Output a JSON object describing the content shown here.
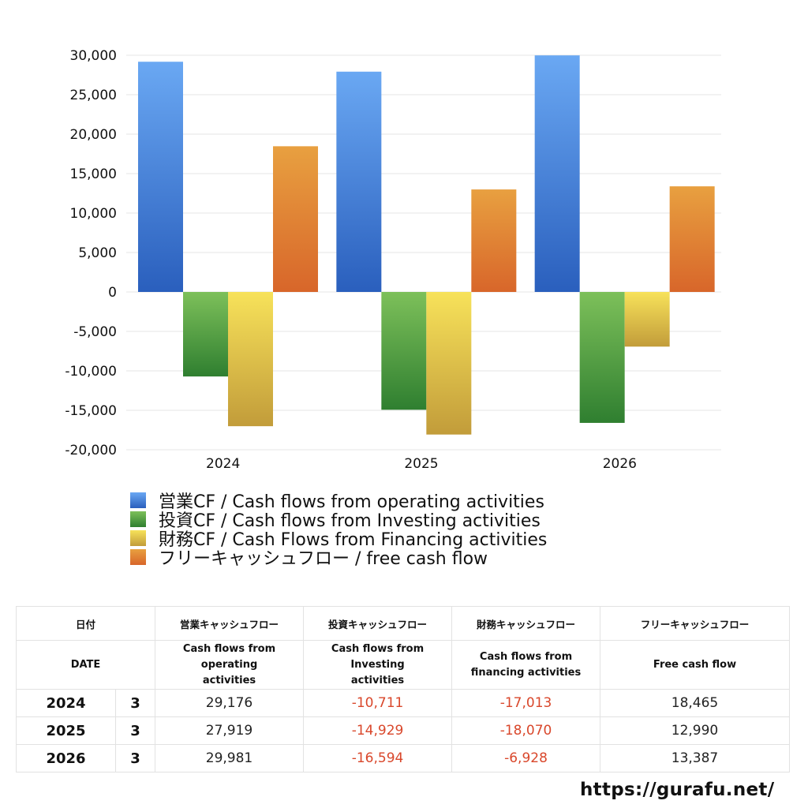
{
  "chart_data": {
    "type": "bar",
    "categories": [
      "2024",
      "2025",
      "2026"
    ],
    "series": [
      {
        "name": "営業CF / Cash flows from operating activities",
        "values": [
          29176,
          27919,
          29981
        ],
        "color": "#3a76d8"
      },
      {
        "name": "投資CF / Cash flows from Investing activities",
        "values": [
          -10711,
          -14929,
          -16594
        ],
        "color": "#4a9a40"
      },
      {
        "name": "財務CF / Cash Flows from Financing activities",
        "values": [
          -17013,
          -18070,
          -6928
        ],
        "color": "#e8cf4a"
      },
      {
        "name": "フリーキャッシュフロー / free cash flow",
        "values": [
          18465,
          12990,
          13387
        ],
        "color": "#e0823a"
      }
    ],
    "yticks": [
      "30,000",
      "25,000",
      "20,000",
      "15,000",
      "10,000",
      "5,000",
      "0",
      "-5,000",
      "-10,000",
      "-15,000",
      "-20,000"
    ],
    "ylim": [
      -20000,
      30000
    ],
    "grid": true,
    "legend": "bottom"
  },
  "table": {
    "headers_jp": [
      "日付",
      "営業キャッシュフロー",
      "投資キャッシュフロー",
      "財務キャッシュフロー",
      "フリーキャッシュフロー"
    ],
    "headers_en": [
      "DATE",
      "Cash flows from operating activities",
      "Cash flows from Investing activities",
      "Cash flows from financing activities",
      "Free cash flow"
    ],
    "rows": [
      {
        "year": "2024",
        "month": "3",
        "op": "29,176",
        "inv": "-10,711",
        "fin": "-17,013",
        "fcf": "18,465"
      },
      {
        "year": "2025",
        "month": "3",
        "op": "27,919",
        "inv": "-14,929",
        "fin": "-18,070",
        "fcf": "12,990"
      },
      {
        "year": "2026",
        "month": "3",
        "op": "29,981",
        "inv": "-16,594",
        "fin": "-6,928",
        "fcf": "13,387"
      }
    ]
  },
  "footer": {
    "url": "https://gurafu.net/"
  }
}
